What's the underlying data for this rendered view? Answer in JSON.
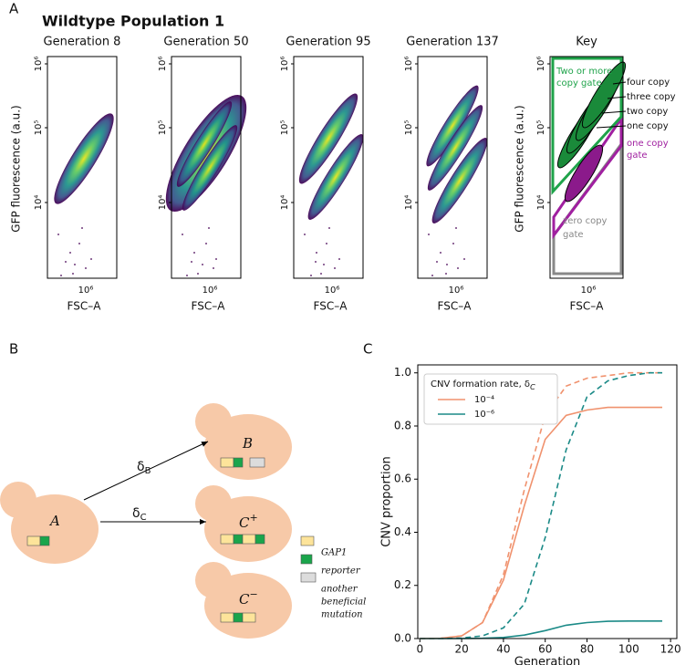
{
  "panel_a": {
    "label": "A",
    "title": "Wildtype Population 1",
    "plots": [
      "Generation 8",
      "Generation 50",
      "Generation 95",
      "Generation 137"
    ],
    "key_title": "Key",
    "ylabel": "GFP fluorescence (a.u.)",
    "xlabel": "FSC–A",
    "yticks": [
      "10⁶",
      "10⁵",
      "10⁴"
    ],
    "xtick": "10⁶",
    "key_labels": {
      "two_or_more_gate": [
        "Two or more",
        "copy gate"
      ],
      "copies": [
        "four copy",
        "three copy",
        "two copy",
        "one copy"
      ],
      "one_copy_gate": [
        "one copy",
        "gate"
      ],
      "zero_copy_gate": [
        "zero copy",
        "gate"
      ]
    }
  },
  "panel_b": {
    "label": "B",
    "nodes": [
      {
        "label": "A"
      },
      {
        "label": "B"
      },
      {
        "label": "C",
        "sup": "+"
      },
      {
        "label": "C",
        "sup": "−"
      }
    ],
    "edges": [
      {
        "label": "δ",
        "sub": "B"
      },
      {
        "label": "δ",
        "sub": "C"
      }
    ],
    "legend": [
      [
        "GAP1"
      ],
      [
        "reporter"
      ],
      [
        "another",
        "beneficial",
        "mutation"
      ]
    ]
  },
  "chart_data": {
    "type": "line",
    "label": "C",
    "xlabel": "Generation",
    "ylabel": "CNV proportion",
    "legend_title": "CNV formation rate, δ",
    "legend_title_sub": "C",
    "x": [
      0,
      10,
      20,
      30,
      40,
      50,
      60,
      70,
      80,
      90,
      100,
      110,
      116
    ],
    "series": [
      {
        "name": "10⁻⁴",
        "color": "#f0926e",
        "dash": false,
        "values": [
          0,
          0.001,
          0.01,
          0.06,
          0.22,
          0.5,
          0.75,
          0.84,
          0.86,
          0.87,
          0.87,
          0.87,
          0.87
        ]
      },
      {
        "name": "10⁻⁶",
        "color": "#1b8a87",
        "dash": false,
        "values": [
          0,
          0,
          0,
          0.001,
          0.004,
          0.013,
          0.03,
          0.05,
          0.06,
          0.065,
          0.066,
          0.066,
          0.066
        ]
      },
      {
        "color": "#f0926e",
        "dash": true,
        "values": [
          0,
          0.001,
          0.01,
          0.06,
          0.24,
          0.56,
          0.84,
          0.95,
          0.98,
          0.99,
          1.0,
          1.0,
          1.0
        ]
      },
      {
        "color": "#1b8a87",
        "dash": true,
        "values": [
          0,
          0,
          0.002,
          0.01,
          0.04,
          0.13,
          0.38,
          0.71,
          0.91,
          0.97,
          0.99,
          1.0,
          1.0
        ]
      }
    ],
    "xlim": [
      -1,
      123
    ],
    "ylim": [
      0,
      1.03
    ],
    "xticks": [
      0,
      20,
      40,
      60,
      80,
      100,
      120
    ],
    "yticks": [
      {
        "value": 0,
        "label": "0.0"
      },
      0.2,
      0.4,
      0.6,
      0.8,
      {
        "value": 1,
        "label": "1.0"
      }
    ]
  }
}
